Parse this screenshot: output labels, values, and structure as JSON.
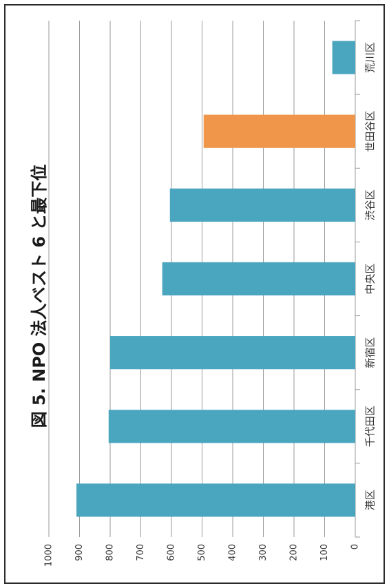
{
  "chart_data": {
    "type": "bar",
    "title": "図 5. NPO 法人ベスト 6 と最下位",
    "categories": [
      "港区",
      "千代田区",
      "新宿区",
      "中央区",
      "渋谷区",
      "世田谷区",
      "荒川区"
    ],
    "values": [
      910,
      805,
      800,
      630,
      605,
      495,
      75
    ],
    "bar_colors": [
      "#4aa6bf",
      "#4aa6bf",
      "#4aa6bf",
      "#4aa6bf",
      "#4aa6bf",
      "#f0964a",
      "#4aa6bf"
    ],
    "ylim": [
      0,
      1000
    ],
    "yticks": [
      0,
      100,
      200,
      300,
      400,
      500,
      600,
      700,
      800,
      900,
      1000
    ],
    "xlabel": "",
    "ylabel": "",
    "grid": true,
    "orientation": "rotated-90-clockwise"
  }
}
